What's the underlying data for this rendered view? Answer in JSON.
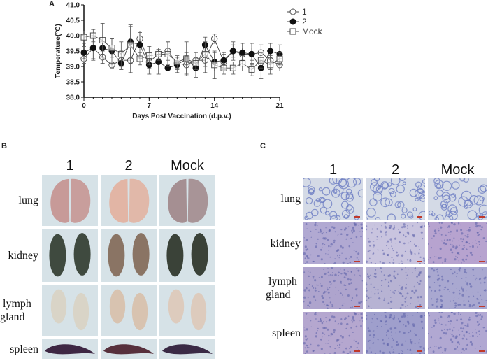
{
  "panel_a": {
    "letter": "A",
    "legend": [
      {
        "label": "1",
        "marker": "open-circle"
      },
      {
        "label": "2",
        "marker": "filled-circle"
      },
      {
        "label": "Mock",
        "marker": "open-square"
      }
    ]
  },
  "chart_data": {
    "type": "line",
    "title": "",
    "xlabel": "Days Post Vaccination (d.p.v.)",
    "ylabel": "Temperature(°C)",
    "x": [
      0,
      1,
      2,
      3,
      4,
      5,
      6,
      7,
      8,
      9,
      10,
      11,
      12,
      13,
      14,
      15,
      16,
      17,
      18,
      19,
      20,
      21
    ],
    "xticks": [
      0,
      7,
      14,
      21
    ],
    "yticks": [
      "38.0",
      "38.5",
      "39.0",
      "39.5",
      "40.0",
      "40.5",
      "41.0"
    ],
    "xlim": [
      0,
      21
    ],
    "ylim": [
      38.0,
      41.0
    ],
    "grid": false,
    "legend_position": "upper right outside",
    "error_bars": true,
    "series": [
      {
        "name": "1",
        "marker": "open-circle",
        "values": [
          39.25,
          39.6,
          39.3,
          39.05,
          39.2,
          39.2,
          39.9,
          39.15,
          39.4,
          39.5,
          39.1,
          39.05,
          39.2,
          39.2,
          39.9,
          39.15,
          39.5,
          39.4,
          39.4,
          39.45,
          39.2,
          39.05
        ],
        "errors": [
          0.15,
          0.35,
          0.2,
          0.1,
          0.3,
          0.4,
          0.2,
          0.2,
          0.15,
          0.3,
          0.2,
          0.3,
          0.25,
          0.4,
          0.15,
          0.25,
          0.2,
          0.2,
          0.2,
          0.25,
          0.3,
          0.2
        ]
      },
      {
        "name": "2",
        "marker": "filled-circle",
        "values": [
          39.45,
          39.6,
          39.6,
          39.5,
          39.1,
          39.8,
          39.7,
          39.05,
          39.15,
          38.95,
          39.05,
          39.25,
          38.95,
          39.7,
          39.15,
          39.2,
          39.5,
          39.45,
          39.4,
          38.95,
          39.5,
          39.4
        ],
        "errors": [
          0.2,
          0.4,
          0.2,
          0.4,
          0.2,
          0.55,
          0.45,
          0.3,
          0.4,
          0.1,
          0.25,
          0.55,
          0.3,
          0.25,
          0.3,
          0.25,
          0.3,
          0.3,
          0.35,
          0.35,
          0.25,
          0.3
        ]
      },
      {
        "name": "Mock",
        "marker": "open-square",
        "values": [
          39.95,
          40.0,
          39.85,
          39.6,
          39.4,
          39.7,
          39.25,
          39.35,
          39.4,
          39.4,
          39.15,
          39.25,
          39.1,
          39.4,
          39.05,
          38.95,
          38.95,
          39.1,
          38.9,
          39.2,
          39.05,
          39.25
        ],
        "errors": [
          0.2,
          0.2,
          0.55,
          0.3,
          0.4,
          0.6,
          0.2,
          0.3,
          0.2,
          0.4,
          0.2,
          0.2,
          0.2,
          0.4,
          0.45,
          0.2,
          0.2,
          0.25,
          0.2,
          0.25,
          0.3,
          0.2
        ]
      }
    ]
  },
  "panel_b": {
    "letter": "B",
    "columns": [
      "1",
      "2",
      "Mock"
    ],
    "rows": [
      "lung",
      "kidney",
      "lymph gland",
      "spleen"
    ],
    "row_labels": [
      [
        "lung"
      ],
      [
        "kidney"
      ],
      [
        "lymph",
        "gland"
      ],
      [
        "spleen"
      ]
    ]
  },
  "panel_c": {
    "letter": "C",
    "columns": [
      "1",
      "2",
      "Mock"
    ],
    "rows": [
      "lung",
      "kidney",
      "lymph gland",
      "spleen"
    ],
    "row_labels": [
      [
        "lung"
      ],
      [
        "kidney"
      ],
      [
        "lymph",
        "gland"
      ],
      [
        "spleen"
      ]
    ],
    "scale_bar_color": "#c0392b"
  },
  "colors": {
    "line": "#444444",
    "axis": "#111111",
    "photo_bg": "#d6e2e7",
    "lung": [
      "#c79a98",
      "#e2b5a5",
      "#a58f92"
    ],
    "kidney": [
      "#3f4a3f",
      "#8a7464",
      "#3a4238"
    ],
    "lymph": [
      "#d9d4c7",
      "#d8c3b0",
      "#ddcbbd"
    ],
    "spleen": [
      "#3e2743",
      "#57303c",
      "#3a2a45"
    ],
    "histo_lung": "#d4dae6",
    "histo_kidney": [
      "#b1a9d2",
      "#c9c4df",
      "#b7a3cf"
    ],
    "histo_lymph": [
      "#aea4cd",
      "#b7b3d3",
      "#a9a8d0"
    ],
    "histo_spleen": [
      "#b5a7cf",
      "#9f9fcc",
      "#b1a8d2"
    ]
  }
}
